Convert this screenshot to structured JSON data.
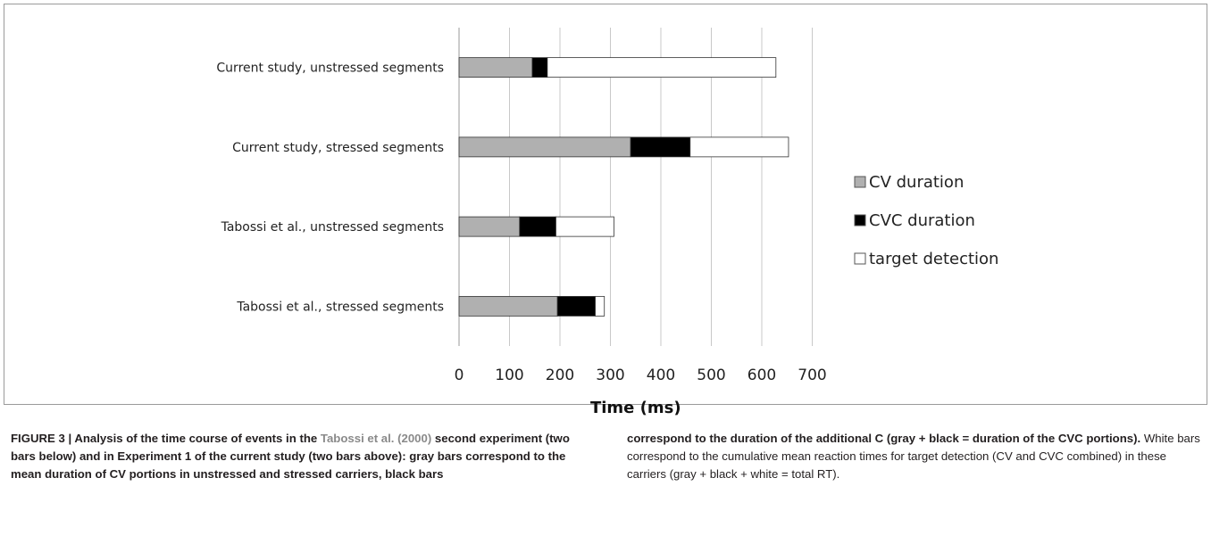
{
  "chart_data": {
    "type": "bar",
    "orientation": "horizontal",
    "stacked": true,
    "categories": [
      "Current study, unstressed segments",
      "Current study, stressed segments",
      "Tabossi et al., unstressed segments",
      "Tabossi et al., stressed segments"
    ],
    "series": [
      {
        "name": "CV duration",
        "color": "#b0b0b0",
        "values": [
          145,
          340,
          120,
          195
        ]
      },
      {
        "name": "CVC duration",
        "color": "#000000",
        "values": [
          30,
          118,
          72,
          75
        ]
      },
      {
        "name": "target detection",
        "color": "#ffffff",
        "values": [
          453,
          195,
          115,
          18
        ]
      }
    ],
    "xlabel": "Time (ms)",
    "xlim": [
      0,
      700
    ],
    "xticks": [
      "0",
      "100",
      "200",
      "300",
      "400",
      "500",
      "600",
      "700"
    ],
    "grid": true,
    "legend_position": "right"
  },
  "caption": {
    "left": {
      "p1": "FIGURE 3 | Analysis of the time course of events in the ",
      "cite": "Tabossi et al. (2000)",
      "p2": " second experiment (two bars below) and in Experiment 1 of the current study (two bars above): gray bars correspond to the mean duration of CV portions in unstressed and stressed carriers, black bars"
    },
    "right": {
      "bold": "correspond to the duration of the additional C (gray + black = duration of the CVC portions).",
      "normal": " White bars correspond to the cumulative mean reaction times for target detection (CV and CVC combined) in these carriers (gray + black + white = total RT)."
    }
  }
}
